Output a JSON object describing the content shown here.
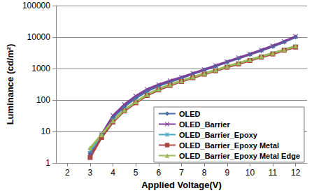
{
  "chart_data": {
    "type": "line",
    "x_label": "Applied Voltage(V)",
    "y_label": "Luminance (cd/m²)",
    "x": [
      3,
      3.5,
      4,
      4.5,
      5,
      5.5,
      6,
      6.5,
      7,
      7.5,
      8,
      8.5,
      9,
      9.5,
      10,
      10.5,
      11,
      11.5,
      12
    ],
    "xlim": [
      1.5,
      12.5
    ],
    "xticks": [
      2,
      3,
      4,
      5,
      6,
      7,
      8,
      9,
      10,
      11,
      12
    ],
    "ylim": [
      1,
      100000
    ],
    "yticks": [
      1,
      10,
      100,
      1000,
      10000,
      100000
    ],
    "log": "y",
    "grid": true,
    "legend": "lower right",
    "series": [
      {
        "name": "OLED",
        "color": "#4572A7",
        "marker": "diamond",
        "values": [
          2,
          8,
          28,
          62,
          115,
          190,
          280,
          380,
          500,
          680,
          900,
          1200,
          1600,
          2100,
          2800,
          3700,
          5000,
          7000,
          10000
        ]
      },
      {
        "name": "OLED_Barrier",
        "color": "#7E3F98",
        "marker": "x",
        "values": [
          2,
          8,
          32,
          72,
          135,
          220,
          310,
          410,
          530,
          700,
          930,
          1250,
          1650,
          2200,
          2900,
          3900,
          5300,
          7300,
          10500
        ]
      },
      {
        "name": "OLED_Barrier_Epoxy",
        "color": "#4BACC6",
        "marker": "asterisk",
        "values": [
          2.5,
          7,
          22,
          48,
          85,
          145,
          220,
          300,
          400,
          520,
          680,
          880,
          1150,
          1450,
          1850,
          2400,
          3000,
          3900,
          5000
        ]
      },
      {
        "name": "OLED_Barrier_Epoxy Metal",
        "color": "#AA4643",
        "marker": "square",
        "values": [
          1.5,
          6.5,
          20,
          45,
          82,
          140,
          210,
          290,
          390,
          510,
          660,
          850,
          1100,
          1400,
          1800,
          2300,
          2900,
          3800,
          4800
        ]
      },
      {
        "name": "OLED_Barrier_Epoxy Metal Edge",
        "color": "#9BBB59",
        "marker": "triangle",
        "values": [
          3,
          8,
          22,
          48,
          88,
          150,
          225,
          310,
          410,
          540,
          700,
          900,
          1180,
          1500,
          1900,
          2450,
          3100,
          4000,
          5200
        ]
      }
    ]
  }
}
